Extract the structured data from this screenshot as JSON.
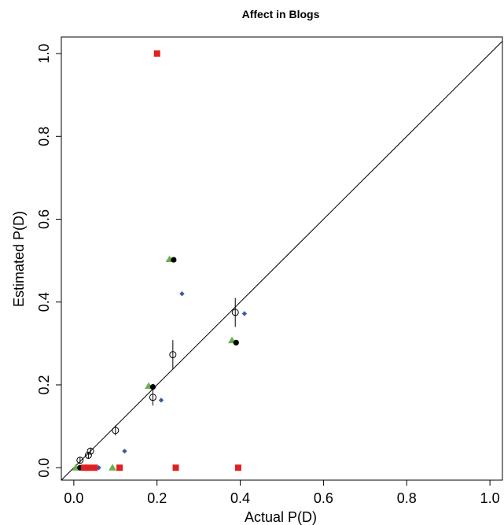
{
  "chart_data": {
    "type": "scatter",
    "title": "Affect in Blogs",
    "xlabel": "Actual P(D)",
    "ylabel": "Estimated P(D)",
    "xlim": [
      -0.03,
      1.03
    ],
    "ylim": [
      -0.03,
      1.04
    ],
    "x_ticks": [
      "0.0",
      "0.2",
      "0.4",
      "0.6",
      "0.8",
      "1.0"
    ],
    "y_ticks": [
      "0.0",
      "0.2",
      "0.4",
      "0.6",
      "0.8",
      "1.0"
    ],
    "grid": false,
    "reference_line": "y = x",
    "series": [
      {
        "marker": "open-circle",
        "color": "#000000",
        "points": [
          {
            "x": 0.015,
            "y": 0.018,
            "err": 0.008
          },
          {
            "x": 0.035,
            "y": 0.03,
            "err": 0.008
          },
          {
            "x": 0.04,
            "y": 0.04,
            "err": 0.008
          },
          {
            "x": 0.1,
            "y": 0.09,
            "err": 0.012
          },
          {
            "x": 0.19,
            "y": 0.17,
            "err": 0.02
          },
          {
            "x": 0.238,
            "y": 0.273,
            "err": 0.035
          },
          {
            "x": 0.388,
            "y": 0.375,
            "err": 0.035
          }
        ]
      },
      {
        "marker": "filled-circle",
        "color": "#000000",
        "points": [
          {
            "x": 0.015,
            "y": 0.0
          },
          {
            "x": 0.19,
            "y": 0.195
          },
          {
            "x": 0.24,
            "y": 0.502
          },
          {
            "x": 0.39,
            "y": 0.302
          }
        ]
      },
      {
        "marker": "diamond",
        "color": "#3c5aa8",
        "points": [
          {
            "x": 0.04,
            "y": 0.0
          },
          {
            "x": 0.06,
            "y": 0.0
          },
          {
            "x": 0.122,
            "y": 0.04
          },
          {
            "x": 0.21,
            "y": 0.163
          },
          {
            "x": 0.26,
            "y": 0.42
          },
          {
            "x": 0.41,
            "y": 0.372
          }
        ]
      },
      {
        "marker": "triangle",
        "color": "#6ab04c",
        "points": [
          {
            "x": 0.005,
            "y": 0.0
          },
          {
            "x": 0.093,
            "y": 0.0
          },
          {
            "x": 0.18,
            "y": 0.197
          },
          {
            "x": 0.23,
            "y": 0.503
          },
          {
            "x": 0.38,
            "y": 0.307
          }
        ]
      },
      {
        "marker": "square",
        "color": "#e02020",
        "points": [
          {
            "x": 0.025,
            "y": 0.0
          },
          {
            "x": 0.035,
            "y": 0.0
          },
          {
            "x": 0.05,
            "y": 0.0
          },
          {
            "x": 0.11,
            "y": 0.0
          },
          {
            "x": 0.2,
            "y": 1.0
          },
          {
            "x": 0.245,
            "y": 0.0
          },
          {
            "x": 0.395,
            "y": 0.0
          }
        ]
      }
    ]
  }
}
